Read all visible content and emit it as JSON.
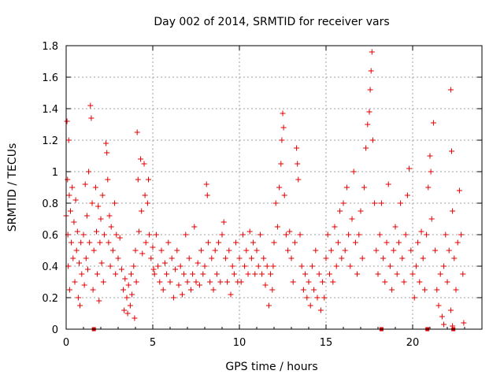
{
  "chart_data": {
    "type": "scatter",
    "title": "Day 002 of 2014, SRMTID for receiver vars",
    "xlabel": "GPS time / hours",
    "ylabel": "SRMTID / TECUs",
    "xlim": [
      0,
      24
    ],
    "ylim": [
      0,
      1.8
    ],
    "xticks": [
      0,
      5,
      10,
      15,
      20
    ],
    "xtick_labels": [
      "0",
      "5",
      "10",
      "15",
      "20"
    ],
    "yticks": [
      0,
      0.2,
      0.4,
      0.6,
      0.8,
      1,
      1.2,
      1.4,
      1.6,
      1.8
    ],
    "ytick_labels": [
      "0",
      "0.2",
      "0.4",
      "0.6",
      "0.8",
      "1",
      "1.2",
      "1.4",
      "1.6",
      "1.8"
    ],
    "grid": true,
    "marker": "+",
    "marker_color": "#e00000",
    "series": [
      {
        "name": "SRMTID",
        "points": [
          [
            0.0,
            0.72
          ],
          [
            0.05,
            1.32
          ],
          [
            0.08,
            0.95
          ],
          [
            0.1,
            0.6
          ],
          [
            0.12,
            0.4
          ],
          [
            0.15,
            1.2
          ],
          [
            0.18,
            0.85
          ],
          [
            0.2,
            0.25
          ],
          [
            0.25,
            0.75
          ],
          [
            0.3,
            0.55
          ],
          [
            0.35,
            0.9
          ],
          [
            0.4,
            0.45
          ],
          [
            0.45,
            0.68
          ],
          [
            0.5,
            0.3
          ],
          [
            0.55,
            0.82
          ],
          [
            0.6,
            0.5
          ],
          [
            0.65,
            0.62
          ],
          [
            0.7,
            0.2
          ],
          [
            0.75,
            0.42
          ],
          [
            0.8,
            0.15
          ],
          [
            0.85,
            0.55
          ],
          [
            0.9,
            0.35
          ],
          [
            1.0,
            0.6
          ],
          [
            1.05,
            0.28
          ],
          [
            1.1,
            0.92
          ],
          [
            1.15,
            0.45
          ],
          [
            1.2,
            0.72
          ],
          [
            1.25,
            0.38
          ],
          [
            1.3,
            1.0
          ],
          [
            1.35,
            0.55
          ],
          [
            1.4,
            1.42
          ],
          [
            1.45,
            1.34
          ],
          [
            1.5,
            0.8
          ],
          [
            1.55,
            0.25
          ],
          [
            1.6,
            0.5
          ],
          [
            1.7,
            0.9
          ],
          [
            1.75,
            0.62
          ],
          [
            1.8,
            0.35
          ],
          [
            1.85,
            0.78
          ],
          [
            1.9,
            0.18
          ],
          [
            1.95,
            0.55
          ],
          [
            2.0,
            0.7
          ],
          [
            2.05,
            0.42
          ],
          [
            2.1,
            0.85
          ],
          [
            2.15,
            0.3
          ],
          [
            2.2,
            0.6
          ],
          [
            2.3,
            1.18
          ],
          [
            2.35,
            1.12
          ],
          [
            2.4,
            0.95
          ],
          [
            2.45,
            0.55
          ],
          [
            2.5,
            0.72
          ],
          [
            2.55,
            0.4
          ],
          [
            2.6,
            0.65
          ],
          [
            2.7,
            0.5
          ],
          [
            2.8,
            0.8
          ],
          [
            2.85,
            0.35
          ],
          [
            2.9,
            0.6
          ],
          [
            3.0,
            0.45
          ],
          [
            3.1,
            0.58
          ],
          [
            3.2,
            0.38
          ],
          [
            3.3,
            0.25
          ],
          [
            3.35,
            0.12
          ],
          [
            3.4,
            0.32
          ],
          [
            3.5,
            0.2
          ],
          [
            3.55,
            0.1
          ],
          [
            3.6,
            0.28
          ],
          [
            3.7,
            0.15
          ],
          [
            3.75,
            0.35
          ],
          [
            3.8,
            0.22
          ],
          [
            3.9,
            0.4
          ],
          [
            3.95,
            0.07
          ],
          [
            4.0,
            0.5
          ],
          [
            4.05,
            0.3
          ],
          [
            4.1,
            1.25
          ],
          [
            4.15,
            0.95
          ],
          [
            4.2,
            0.62
          ],
          [
            4.3,
            1.08
          ],
          [
            4.35,
            0.75
          ],
          [
            4.4,
            0.48
          ],
          [
            4.5,
            1.05
          ],
          [
            4.55,
            0.85
          ],
          [
            4.6,
            0.55
          ],
          [
            4.7,
            0.8
          ],
          [
            4.75,
            0.95
          ],
          [
            4.8,
            0.6
          ],
          [
            4.9,
            0.45
          ],
          [
            5.0,
            0.52
          ],
          [
            5.1,
            0.35
          ],
          [
            5.2,
            0.6
          ],
          [
            5.3,
            0.4
          ],
          [
            5.4,
            0.3
          ],
          [
            5.5,
            0.5
          ],
          [
            5.6,
            0.25
          ],
          [
            5.7,
            0.42
          ],
          [
            5.8,
            0.35
          ],
          [
            5.9,
            0.55
          ],
          [
            6.0,
            0.3
          ],
          [
            6.1,
            0.45
          ],
          [
            6.2,
            0.2
          ],
          [
            6.3,
            0.38
          ],
          [
            6.4,
            0.5
          ],
          [
            6.5,
            0.28
          ],
          [
            6.6,
            0.4
          ],
          [
            6.7,
            0.22
          ],
          [
            6.8,
            0.35
          ],
          [
            6.9,
            0.6
          ],
          [
            7.0,
            0.3
          ],
          [
            7.1,
            0.45
          ],
          [
            7.2,
            0.25
          ],
          [
            7.3,
            0.35
          ],
          [
            7.4,
            0.65
          ],
          [
            7.5,
            0.3
          ],
          [
            7.6,
            0.42
          ],
          [
            7.7,
            0.28
          ],
          [
            7.8,
            0.5
          ],
          [
            7.9,
            0.35
          ],
          [
            8.0,
            0.4
          ],
          [
            8.1,
            0.92
          ],
          [
            8.15,
            0.85
          ],
          [
            8.2,
            0.55
          ],
          [
            8.3,
            0.3
          ],
          [
            8.4,
            0.45
          ],
          [
            8.5,
            0.25
          ],
          [
            8.6,
            0.5
          ],
          [
            8.7,
            0.35
          ],
          [
            8.8,
            0.55
          ],
          [
            8.9,
            0.3
          ],
          [
            9.0,
            0.6
          ],
          [
            9.1,
            0.68
          ],
          [
            9.2,
            0.45
          ],
          [
            9.3,
            0.3
          ],
          [
            9.4,
            0.5
          ],
          [
            9.5,
            0.22
          ],
          [
            9.6,
            0.4
          ],
          [
            9.7,
            0.35
          ],
          [
            9.8,
            0.55
          ],
          [
            9.9,
            0.3
          ],
          [
            10.0,
            0.45
          ],
          [
            10.1,
            0.3
          ],
          [
            10.2,
            0.6
          ],
          [
            10.3,
            0.4
          ],
          [
            10.4,
            0.5
          ],
          [
            10.5,
            0.35
          ],
          [
            10.6,
            0.62
          ],
          [
            10.7,
            0.45
          ],
          [
            10.8,
            0.55
          ],
          [
            10.9,
            0.35
          ],
          [
            11.0,
            0.5
          ],
          [
            11.1,
            0.4
          ],
          [
            11.2,
            0.6
          ],
          [
            11.3,
            0.35
          ],
          [
            11.4,
            0.45
          ],
          [
            11.5,
            0.28
          ],
          [
            11.6,
            0.4
          ],
          [
            11.7,
            0.15
          ],
          [
            11.8,
            0.35
          ],
          [
            11.9,
            0.25
          ],
          [
            12.0,
            0.55
          ],
          [
            12.1,
            0.8
          ],
          [
            12.2,
            0.65
          ],
          [
            12.3,
            0.9
          ],
          [
            12.4,
            1.05
          ],
          [
            12.45,
            1.2
          ],
          [
            12.5,
            1.37
          ],
          [
            12.55,
            1.28
          ],
          [
            12.6,
            0.85
          ],
          [
            12.7,
            0.6
          ],
          [
            12.8,
            0.5
          ],
          [
            12.9,
            0.62
          ],
          [
            13.0,
            0.45
          ],
          [
            13.1,
            0.3
          ],
          [
            13.2,
            0.55
          ],
          [
            13.3,
            1.15
          ],
          [
            13.35,
            1.05
          ],
          [
            13.4,
            0.95
          ],
          [
            13.5,
            0.6
          ],
          [
            13.6,
            0.4
          ],
          [
            13.7,
            0.25
          ],
          [
            13.8,
            0.35
          ],
          [
            13.9,
            0.2
          ],
          [
            14.0,
            0.3
          ],
          [
            14.1,
            0.15
          ],
          [
            14.2,
            0.4
          ],
          [
            14.3,
            0.25
          ],
          [
            14.4,
            0.5
          ],
          [
            14.5,
            0.2
          ],
          [
            14.6,
            0.35
          ],
          [
            14.7,
            0.12
          ],
          [
            14.8,
            0.3
          ],
          [
            14.9,
            0.2
          ],
          [
            15.0,
            0.45
          ],
          [
            15.1,
            0.6
          ],
          [
            15.2,
            0.35
          ],
          [
            15.3,
            0.5
          ],
          [
            15.4,
            0.3
          ],
          [
            15.5,
            0.65
          ],
          [
            15.6,
            0.4
          ],
          [
            15.7,
            0.55
          ],
          [
            15.8,
            0.75
          ],
          [
            15.9,
            0.45
          ],
          [
            16.0,
            0.8
          ],
          [
            16.1,
            0.5
          ],
          [
            16.2,
            0.9
          ],
          [
            16.3,
            0.6
          ],
          [
            16.4,
            0.4
          ],
          [
            16.5,
            0.7
          ],
          [
            16.6,
            1.0
          ],
          [
            16.7,
            0.55
          ],
          [
            16.8,
            0.35
          ],
          [
            16.9,
            0.6
          ],
          [
            17.0,
            0.75
          ],
          [
            17.1,
            0.45
          ],
          [
            17.2,
            0.9
          ],
          [
            17.3,
            1.15
          ],
          [
            17.4,
            1.3
          ],
          [
            17.5,
            1.38
          ],
          [
            17.55,
            1.52
          ],
          [
            17.6,
            1.64
          ],
          [
            17.65,
            1.76
          ],
          [
            17.7,
            1.2
          ],
          [
            17.8,
            0.8
          ],
          [
            17.9,
            0.5
          ],
          [
            18.0,
            0.35
          ],
          [
            18.1,
            0.6
          ],
          [
            18.2,
            0.8
          ],
          [
            18.3,
            0.45
          ],
          [
            18.4,
            0.3
          ],
          [
            18.5,
            0.55
          ],
          [
            18.6,
            0.92
          ],
          [
            18.7,
            0.4
          ],
          [
            18.8,
            0.25
          ],
          [
            18.9,
            0.5
          ],
          [
            19.0,
            0.65
          ],
          [
            19.1,
            0.35
          ],
          [
            19.2,
            0.55
          ],
          [
            19.3,
            0.8
          ],
          [
            19.4,
            0.45
          ],
          [
            19.5,
            0.3
          ],
          [
            19.6,
            0.6
          ],
          [
            19.7,
            0.85
          ],
          [
            19.8,
            1.02
          ],
          [
            19.9,
            0.5
          ],
          [
            20.0,
            0.35
          ],
          [
            20.1,
            0.2
          ],
          [
            20.2,
            0.4
          ],
          [
            20.3,
            0.55
          ],
          [
            20.4,
            0.3
          ],
          [
            20.5,
            0.62
          ],
          [
            20.6,
            0.45
          ],
          [
            20.7,
            0.25
          ],
          [
            20.8,
            0.6
          ],
          [
            20.9,
            0.9
          ],
          [
            21.0,
            1.1
          ],
          [
            21.05,
            1.0
          ],
          [
            21.1,
            0.7
          ],
          [
            21.2,
            1.31
          ],
          [
            21.3,
            0.5
          ],
          [
            21.4,
            0.25
          ],
          [
            21.5,
            0.15
          ],
          [
            21.6,
            0.35
          ],
          [
            21.7,
            0.08
          ],
          [
            21.8,
            0.4
          ],
          [
            21.9,
            0.6
          ],
          [
            22.0,
            0.3
          ],
          [
            22.1,
            0.5
          ],
          [
            22.2,
            1.52
          ],
          [
            22.25,
            1.13
          ],
          [
            22.3,
            0.75
          ],
          [
            22.4,
            0.45
          ],
          [
            22.5,
            0.25
          ],
          [
            22.6,
            0.55
          ],
          [
            22.7,
            0.88
          ],
          [
            22.8,
            0.6
          ],
          [
            22.9,
            0.35
          ],
          [
            22.95,
            0.04
          ],
          [
            22.2,
            0.12
          ],
          [
            22.3,
            0.02
          ],
          [
            21.8,
            0.03
          ],
          [
            11.95,
            0.4
          ],
          [
            5.05,
            0.38
          ]
        ]
      }
    ],
    "baseline_markers": [
      1.6,
      18.2,
      20.85,
      22.35
    ]
  }
}
